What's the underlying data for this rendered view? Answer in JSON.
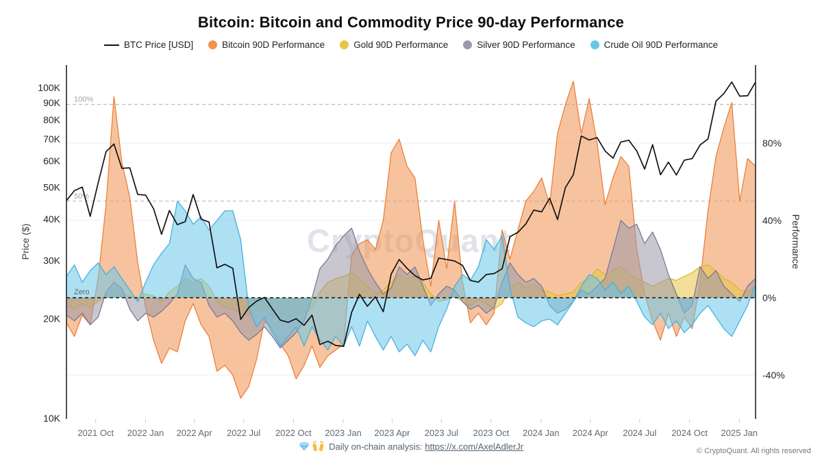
{
  "header": {
    "title": "Bitcoin: Bitcoin and Commodity Price 90-day Performance"
  },
  "legend": {
    "items": [
      {
        "label": "BTC Price [USD]",
        "marker": "line",
        "color": "#111111"
      },
      {
        "label": "Bitcoin 90D Performance",
        "marker": "dot",
        "color": "#F09250"
      },
      {
        "label": "Gold 90D Performance",
        "marker": "dot",
        "color": "#E9C545"
      },
      {
        "label": "Silver 90D Performance",
        "marker": "dot",
        "color": "#9B99A9"
      },
      {
        "label": "Crude Oil 90D Performance",
        "marker": "dot",
        "color": "#6AC6E9"
      }
    ]
  },
  "watermark": "CryptoQuant",
  "axis_titles": {
    "left": "Price ($)",
    "right": "Performance"
  },
  "annotations": {
    "hundred": "100%",
    "fifty": "50%",
    "zero": "Zero"
  },
  "footer": {
    "center_text": "Daily on-chain analysis:",
    "link": "https://x.com/AxelAdlerJr",
    "copyright": "© CryptoQuant. All rights reserved"
  },
  "chart_data": {
    "type": "area",
    "title": "Bitcoin: Bitcoin and Commodity Price 90-day Performance",
    "x_range": [
      "2021-08",
      "2025-02"
    ],
    "n_points": 88,
    "x_ticks": [
      {
        "label": "2021 Oct",
        "i": 3.69
      },
      {
        "label": "2022 Jan",
        "i": 9.99
      },
      {
        "label": "2022 Apr",
        "i": 16.14
      },
      {
        "label": "2022 Jul",
        "i": 22.37
      },
      {
        "label": "2022 Oct",
        "i": 28.66
      },
      {
        "label": "2023 Jan",
        "i": 34.95
      },
      {
        "label": "2023 Apr",
        "i": 41.11
      },
      {
        "label": "2023 Jul",
        "i": 47.33
      },
      {
        "label": "2023 Oct",
        "i": 53.62
      },
      {
        "label": "2024 Jan",
        "i": 59.92
      },
      {
        "label": "2024 Apr",
        "i": 66.14
      },
      {
        "label": "2024 Jul",
        "i": 72.37
      },
      {
        "label": "2024 Oct",
        "i": 78.66
      },
      {
        "label": "2025 Jan",
        "i": 84.95
      }
    ],
    "left_axis": {
      "title": "Price ($)",
      "scale": "log",
      "unit": "thousand USD",
      "ticks": [
        100,
        90,
        80,
        70,
        60,
        50,
        40,
        30,
        20,
        10
      ],
      "tick_labels": [
        "100K",
        "90K",
        "80K",
        "70K",
        "60K",
        "50K",
        "40K",
        "30K",
        "20K",
        "10K"
      ]
    },
    "right_axis": {
      "title": "Performance",
      "unit": "%",
      "ticks": [
        80,
        40,
        0,
        -40
      ],
      "tick_labels": [
        "80%",
        "40%",
        "0%",
        "-40%"
      ],
      "grid": [
        80,
        40,
        -40
      ]
    },
    "ref_lines": [
      {
        "label": "100%",
        "value": 100,
        "dash": true,
        "color": "#b7bcc4"
      },
      {
        "label": "50%",
        "value": 50,
        "dash": true,
        "color": "#b7bcc4"
      },
      {
        "label": "Zero",
        "value": 0,
        "dash": true,
        "color": "#111111"
      }
    ],
    "price_series": {
      "name": "BTC Price [USD]",
      "type": "line",
      "color": "#111111",
      "values_k_usd": [
        45.5,
        48.8,
        50.0,
        40.8,
        51.5,
        64.0,
        67.5,
        57.0,
        57.2,
        47.5,
        47.3,
        43.0,
        36.0,
        42.5,
        38.5,
        39.3,
        47.5,
        40.0,
        39.2,
        28.5,
        29.2,
        28.4,
        19.9,
        21.6,
        22.6,
        23.2,
        21.4,
        19.8,
        19.5,
        20.0,
        19.1,
        20.5,
        16.7,
        17.1,
        16.6,
        16.5,
        20.9,
        23.7,
        21.8,
        23.3,
        21.0,
        27.3,
        30.2,
        28.4,
        27.0,
        26.2,
        26.5,
        30.5,
        30.2,
        29.9,
        29.0,
        26.1,
        25.8,
        27.2,
        27.4,
        28.3,
        35.4,
        36.5,
        38.7,
        42.6,
        42.1,
        46.3,
        39.9,
        49.9,
        54.5,
        71.4,
        69.4,
        70.6,
        64.3,
        61.2,
        68.5,
        69.3,
        64.3,
        56.7,
        67.2,
        54.5,
        59.5,
        54.4,
        60.3,
        61.0,
        67.1,
        69.9,
        91.0,
        95.9,
        104.0,
        94.2,
        94.5,
        104.0
      ]
    },
    "series": [
      {
        "name": "Bitcoin 90D Performance",
        "color": "#F09250",
        "stroke": "#EC7F38",
        "values_pct": [
          -13,
          -20,
          -9,
          -14,
          10,
          48,
          104,
          70,
          52,
          18,
          -5,
          -22,
          -34,
          -26,
          -28,
          -12,
          -3,
          -14,
          -20,
          -38,
          -35,
          -40,
          -52,
          -46,
          -32,
          -12,
          -16,
          -24,
          -30,
          -42,
          -35,
          -25,
          -36,
          -30,
          -27,
          -24,
          22,
          28,
          30,
          25,
          40,
          75,
          82,
          68,
          62,
          30,
          6,
          40,
          15,
          50,
          8,
          -13,
          -8,
          -14,
          -8,
          35,
          20,
          35,
          50,
          55,
          62,
          48,
          85,
          100,
          112,
          85,
          103,
          80,
          48,
          62,
          73,
          68,
          25,
          2,
          -12,
          -22,
          -8,
          -20,
          -10,
          -16,
          8,
          45,
          73,
          88,
          101,
          50,
          72,
          68
        ]
      },
      {
        "name": "Gold 90D Performance",
        "color": "#E9C545",
        "stroke": "#DDB52E",
        "values_pct": [
          -4,
          -6,
          -3,
          -5,
          -2,
          1,
          4,
          2,
          1,
          -1,
          2,
          1,
          -2,
          3,
          6,
          10,
          8,
          10,
          6,
          -2,
          -5,
          -6,
          -8,
          -9,
          -7,
          -6,
          -10,
          -8,
          -10,
          -9,
          -8,
          -5,
          3,
          8,
          10,
          11,
          13,
          10,
          6,
          2,
          4,
          8,
          12,
          10,
          11,
          8,
          2,
          -2,
          -1,
          1,
          -2,
          -4,
          -1,
          -3,
          -6,
          -3,
          5,
          8,
          5,
          7,
          4,
          3,
          1,
          2,
          3,
          8,
          10,
          15,
          12,
          14,
          16,
          12,
          10,
          8,
          6,
          8,
          10,
          9,
          11,
          13,
          16,
          17,
          14,
          10,
          8,
          4,
          3,
          6
        ]
      },
      {
        "name": "Silver 90D Performance",
        "color": "#9B99A9",
        "stroke": "#7B7991",
        "values_pct": [
          -9,
          -12,
          -8,
          -14,
          -10,
          3,
          8,
          5,
          -6,
          -12,
          -8,
          -10,
          -7,
          -3,
          2,
          17,
          10,
          8,
          -4,
          -10,
          -8,
          -12,
          -18,
          -22,
          -19,
          -15,
          -20,
          -26,
          -22,
          -18,
          -12,
          0,
          15,
          20,
          27,
          32,
          36,
          24,
          15,
          8,
          2,
          5,
          16,
          12,
          16,
          6,
          -4,
          2,
          6,
          4,
          -2,
          -6,
          -4,
          -8,
          -5,
          8,
          18,
          12,
          8,
          10,
          6,
          -4,
          -8,
          -6,
          -2,
          4,
          2,
          6,
          10,
          25,
          40,
          36,
          38,
          28,
          34,
          25,
          12,
          2,
          -8,
          -4,
          16,
          10,
          14,
          6,
          2,
          -2,
          6,
          10
        ]
      },
      {
        "name": "Crude Oil 90D Performance",
        "color": "#6AC6E9",
        "stroke": "#45B1DE",
        "values_pct": [
          11,
          17,
          8,
          14,
          18,
          12,
          16,
          10,
          4,
          -2,
          8,
          17,
          23,
          28,
          50,
          45,
          38,
          42,
          35,
          40,
          45,
          45,
          30,
          -5,
          -15,
          -10,
          -18,
          -25,
          -20,
          -15,
          -25,
          -15,
          -22,
          -27,
          -20,
          -25,
          -15,
          -25,
          -12,
          -20,
          -27,
          -20,
          -28,
          -24,
          -30,
          -22,
          -28,
          -15,
          -6,
          6,
          12,
          9,
          16,
          30,
          25,
          32,
          5,
          -10,
          -13,
          -15,
          -12,
          -11,
          -14,
          -8,
          -2,
          6,
          12,
          10,
          4,
          8,
          2,
          6,
          -2,
          -10,
          -14,
          -8,
          -16,
          -12,
          -18,
          -14,
          -8,
          -4,
          -10,
          -16,
          -20,
          -12,
          -4,
          7
        ]
      }
    ]
  }
}
